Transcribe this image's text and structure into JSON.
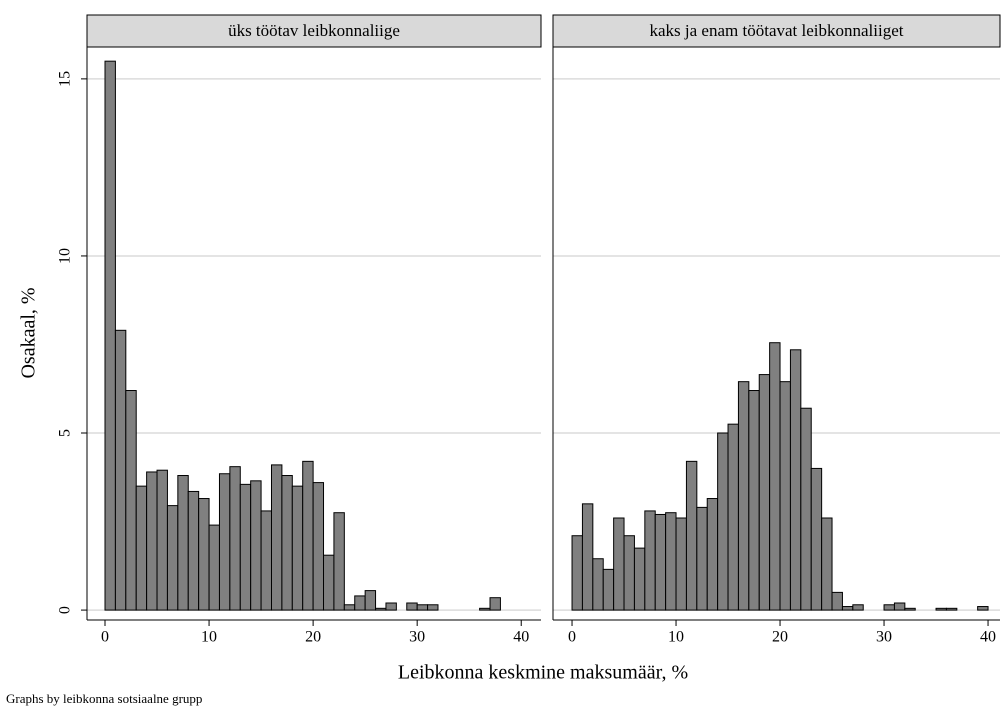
{
  "ylabel": "Osakaal, %",
  "xlabel": "Leibkonna keskmine maksumäär, %",
  "note": "Graphs by leibkonna sotsiaalne grupp",
  "chart_data": [
    {
      "type": "histogram",
      "title": "üks töötav leibkonnaliige",
      "color": "#808080",
      "bins": [
        0,
        1,
        2,
        3,
        4,
        5,
        6,
        7,
        8,
        9,
        10,
        11,
        12,
        13,
        14,
        15,
        16,
        17,
        18,
        19,
        20,
        21,
        22,
        23,
        24,
        25,
        26,
        27,
        28,
        29,
        30,
        31,
        32,
        33,
        34,
        35,
        36,
        37,
        38
      ],
      "values": [
        15.5,
        7.9,
        6.2,
        3.5,
        3.9,
        3.95,
        2.95,
        3.8,
        3.35,
        3.15,
        2.4,
        3.85,
        4.05,
        3.55,
        3.65,
        2.8,
        4.1,
        3.8,
        3.5,
        4.2,
        3.6,
        1.55,
        2.75,
        0.15,
        0.4,
        0.55,
        0.05,
        0.2,
        0,
        0.2,
        0.15,
        0.15,
        0,
        0,
        0,
        0,
        0.05,
        0.35
      ],
      "xlim": [
        -1.73,
        41.9
      ],
      "xticks": [
        0,
        10,
        20,
        30,
        40
      ],
      "ylim": [
        -0.28,
        15.9
      ],
      "yticks": [
        0,
        5,
        10,
        15
      ],
      "grid": true
    },
    {
      "type": "histogram",
      "title": "kaks ja enam töötavat leibkonnaliiget",
      "color": "#808080",
      "bins": [
        0,
        1,
        2,
        3,
        4,
        5,
        6,
        7,
        8,
        9,
        10,
        11,
        12,
        13,
        14,
        15,
        16,
        17,
        18,
        19,
        20,
        21,
        22,
        23,
        24,
        25,
        26,
        27,
        28,
        29,
        30,
        31,
        32,
        33,
        34,
        35,
        36,
        37,
        38,
        39,
        40
      ],
      "values": [
        2.1,
        3.0,
        1.45,
        1.15,
        2.6,
        2.1,
        1.75,
        2.8,
        2.7,
        2.75,
        2.6,
        4.2,
        2.9,
        3.15,
        5.0,
        5.25,
        6.45,
        6.2,
        6.65,
        7.55,
        6.45,
        7.35,
        5.7,
        4.0,
        2.6,
        0.5,
        0.1,
        0.15,
        0,
        0,
        0.15,
        0.2,
        0.05,
        0,
        0,
        0.05,
        0.05,
        0,
        0,
        0.1
      ],
      "xlim": [
        -1.83,
        41.15
      ],
      "xticks": [
        0,
        10,
        20,
        30,
        40
      ],
      "ylim": [
        -0.28,
        15.9
      ],
      "yticks": [
        0,
        5,
        10,
        15
      ],
      "grid": true
    }
  ]
}
